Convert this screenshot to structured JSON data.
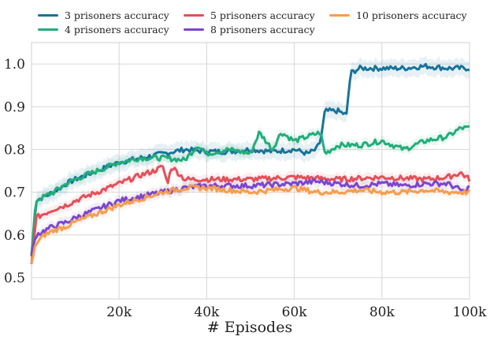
{
  "chart_data": {
    "type": "line",
    "xlabel": "# Episodes",
    "ylabel": "",
    "xlim": [
      0,
      100000
    ],
    "ylim": [
      0.45,
      1.05
    ],
    "x_ticks": [
      20000,
      40000,
      60000,
      80000,
      100000
    ],
    "x_tick_labels": [
      "20k",
      "40k",
      "60k",
      "80k",
      "100k"
    ],
    "y_ticks": [
      0.5,
      0.6,
      0.7,
      0.8,
      0.9,
      1.0
    ],
    "y_tick_labels": [
      "0.5",
      "0.6",
      "0.7",
      "0.8",
      "0.9",
      "1.0"
    ],
    "grid": true,
    "legend_position": "top",
    "series": [
      {
        "name": "3 prisoners accuracy",
        "color": "#18739a",
        "x": [
          0,
          1000,
          3000,
          5000,
          8000,
          10000,
          15000,
          20000,
          25000,
          30000,
          35000,
          40000,
          45000,
          50000,
          55000,
          60000,
          63000,
          65000,
          66000,
          67000,
          70000,
          72000,
          72500,
          73000,
          75000,
          80000,
          85000,
          90000,
          95000,
          100000
        ],
        "values": [
          0.55,
          0.68,
          0.69,
          0.7,
          0.72,
          0.73,
          0.75,
          0.77,
          0.78,
          0.79,
          0.8,
          0.795,
          0.795,
          0.8,
          0.795,
          0.8,
          0.79,
          0.8,
          0.82,
          0.89,
          0.89,
          0.88,
          0.95,
          0.98,
          0.99,
          0.99,
          0.99,
          0.995,
          0.99,
          0.99
        ]
      },
      {
        "name": "4 prisoners accuracy",
        "color": "#22ad7a",
        "x": [
          0,
          1000,
          3000,
          5000,
          8000,
          10000,
          15000,
          20000,
          25000,
          30000,
          35000,
          38000,
          40000,
          45000,
          50000,
          52000,
          55000,
          57000,
          60000,
          63000,
          66000,
          67000,
          70000,
          75000,
          80000,
          85000,
          90000,
          95000,
          98000,
          100000
        ],
        "values": [
          0.55,
          0.68,
          0.69,
          0.7,
          0.72,
          0.73,
          0.75,
          0.77,
          0.78,
          0.78,
          0.775,
          0.81,
          0.79,
          0.8,
          0.79,
          0.84,
          0.8,
          0.84,
          0.82,
          0.83,
          0.84,
          0.79,
          0.81,
          0.81,
          0.82,
          0.8,
          0.82,
          0.83,
          0.85,
          0.85
        ]
      },
      {
        "name": "5 prisoners accuracy",
        "color": "#e2505a",
        "x": [
          0,
          1000,
          3000,
          5000,
          8000,
          10000,
          15000,
          20000,
          25000,
          28000,
          30000,
          31000,
          32000,
          35000,
          40000,
          50000,
          60000,
          70000,
          80000,
          90000,
          95000,
          98000,
          100000
        ],
        "values": [
          0.53,
          0.64,
          0.65,
          0.66,
          0.67,
          0.68,
          0.7,
          0.72,
          0.74,
          0.75,
          0.76,
          0.72,
          0.76,
          0.73,
          0.73,
          0.73,
          0.735,
          0.73,
          0.735,
          0.73,
          0.735,
          0.745,
          0.73
        ]
      },
      {
        "name": "8 prisoners accuracy",
        "color": "#7a46cf",
        "x": [
          0,
          1000,
          3000,
          5000,
          8000,
          10000,
          15000,
          20000,
          25000,
          30000,
          35000,
          40000,
          50000,
          60000,
          65000,
          70000,
          75000,
          80000,
          85000,
          90000,
          95000,
          99000,
          100000
        ],
        "values": [
          0.55,
          0.6,
          0.61,
          0.62,
          0.63,
          0.64,
          0.66,
          0.68,
          0.69,
          0.7,
          0.71,
          0.715,
          0.715,
          0.72,
          0.725,
          0.72,
          0.715,
          0.72,
          0.715,
          0.72,
          0.72,
          0.7,
          0.715
        ]
      },
      {
        "name": "10 prisoners accuracy",
        "color": "#f59d4e",
        "x": [
          0,
          1000,
          3000,
          5000,
          8000,
          10000,
          15000,
          20000,
          25000,
          30000,
          35000,
          40000,
          45000,
          50000,
          55000,
          60000,
          65000,
          70000,
          75000,
          80000,
          85000,
          90000,
          95000,
          100000
        ],
        "values": [
          0.53,
          0.58,
          0.6,
          0.61,
          0.62,
          0.63,
          0.65,
          0.67,
          0.685,
          0.7,
          0.71,
          0.71,
          0.705,
          0.7,
          0.705,
          0.71,
          0.7,
          0.7,
          0.705,
          0.7,
          0.7,
          0.705,
          0.7,
          0.7
        ]
      }
    ]
  }
}
